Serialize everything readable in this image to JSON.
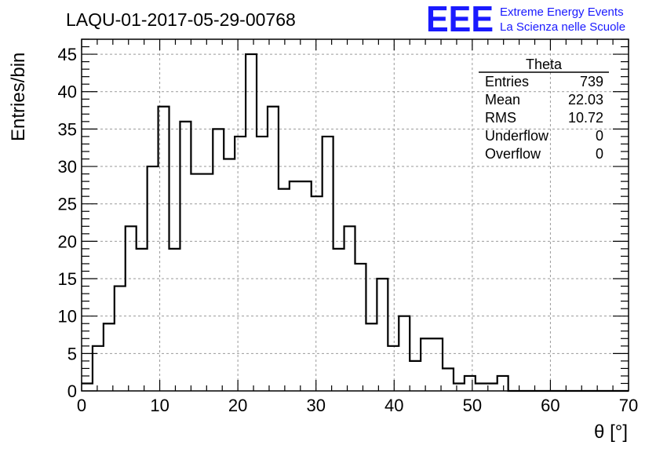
{
  "chart_data": {
    "type": "bar",
    "title": "LAQU-01-2017-05-29-00768",
    "xlabel": "θ [°]",
    "ylabel": "Entries/bin",
    "xlim": [
      0,
      70
    ],
    "ylim": [
      0,
      47
    ],
    "grid": true,
    "bin_width": 1.4,
    "x_ticks": [
      0,
      10,
      20,
      30,
      40,
      50,
      60,
      70
    ],
    "y_ticks": [
      0,
      5,
      10,
      15,
      20,
      25,
      30,
      35,
      40,
      45
    ],
    "x_tick_labels": [
      "0",
      "10",
      "20",
      "30",
      "40",
      "50",
      "60",
      "70"
    ],
    "y_tick_labels": [
      "0",
      "5",
      "10",
      "15",
      "20",
      "25",
      "30",
      "35",
      "40",
      "45"
    ],
    "values": [
      1,
      6,
      9,
      14,
      22,
      19,
      30,
      38,
      19,
      36,
      29,
      29,
      35,
      31,
      34,
      45,
      34,
      38,
      27,
      28,
      28,
      26,
      34,
      19,
      22,
      17,
      9,
      15,
      6,
      10,
      4,
      7,
      7,
      3,
      1,
      2,
      1,
      1,
      2,
      0,
      0,
      0,
      0,
      0,
      0,
      0,
      0,
      0,
      0,
      0
    ],
    "series": [
      {
        "name": "Theta",
        "values": [
          1,
          6,
          9,
          14,
          22,
          19,
          30,
          38,
          19,
          36,
          29,
          29,
          35,
          31,
          34,
          45,
          34,
          38,
          27,
          28,
          28,
          26,
          34,
          19,
          22,
          17,
          9,
          15,
          6,
          10,
          4,
          7,
          7,
          3,
          1,
          2,
          1,
          1,
          2,
          0,
          0,
          0,
          0,
          0,
          0,
          0,
          0,
          0,
          0,
          0
        ]
      }
    ]
  },
  "stats_box": {
    "title": "Theta",
    "rows": [
      {
        "label": "Entries",
        "value": "739"
      },
      {
        "label": "Mean",
        "value": "22.03"
      },
      {
        "label": "RMS",
        "value": "10.72"
      },
      {
        "label": "Underflow",
        "value": "0"
      },
      {
        "label": "Overflow",
        "value": "0"
      }
    ]
  },
  "logo": {
    "text": "EEE",
    "line1": "Extreme Energy Events",
    "line2": "La Scienza nelle Scuole",
    "color": "#1a1aff"
  }
}
